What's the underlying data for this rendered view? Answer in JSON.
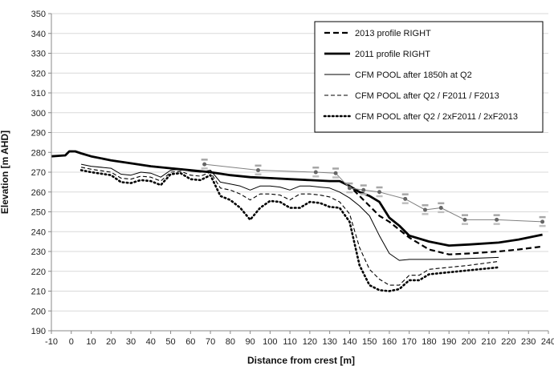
{
  "chart_data": {
    "type": "line",
    "xlabel": "Distance from crest [m]",
    "ylabel": "Elevation [m AHD]",
    "xlim": [
      -10,
      240
    ],
    "ylim": [
      190,
      350
    ],
    "x_ticks": [
      -10,
      0,
      10,
      20,
      30,
      40,
      50,
      60,
      70,
      80,
      90,
      100,
      110,
      120,
      130,
      140,
      150,
      160,
      170,
      180,
      190,
      200,
      210,
      220,
      230,
      240
    ],
    "y_ticks": [
      190,
      200,
      210,
      220,
      230,
      240,
      250,
      260,
      270,
      280,
      290,
      300,
      310,
      320,
      330,
      340,
      350
    ],
    "grid": "horizontal",
    "legend_position": "top-right",
    "series": [
      {
        "name": "2013 profile RIGHT",
        "style": "dashed-thick",
        "color": "#000000",
        "points": [
          [
            -10,
            278
          ],
          [
            -3,
            278.5
          ],
          [
            -1,
            280.5
          ],
          [
            2,
            280.5
          ],
          [
            5,
            279.5
          ],
          [
            10,
            278
          ],
          [
            20,
            276
          ],
          [
            30,
            274.5
          ],
          [
            40,
            273
          ],
          [
            50,
            272
          ],
          [
            60,
            271
          ],
          [
            70,
            270
          ],
          [
            80,
            268.5
          ],
          [
            90,
            267.5
          ],
          [
            100,
            267
          ],
          [
            110,
            266.5
          ],
          [
            120,
            266
          ],
          [
            130,
            265.5
          ],
          [
            135,
            265.5
          ],
          [
            140,
            263
          ],
          [
            145,
            258
          ],
          [
            150,
            253
          ],
          [
            155,
            248
          ],
          [
            160,
            245
          ],
          [
            165,
            241
          ],
          [
            170,
            237
          ],
          [
            180,
            231
          ],
          [
            190,
            228.5
          ],
          [
            200,
            229
          ],
          [
            215,
            230
          ],
          [
            225,
            231
          ],
          [
            237,
            232.5
          ]
        ]
      },
      {
        "name": "2011 profile RIGHT",
        "style": "solid-thick",
        "color": "#000000",
        "points": [
          [
            -10,
            278
          ],
          [
            -3,
            278.5
          ],
          [
            -1,
            280.5
          ],
          [
            2,
            280.5
          ],
          [
            5,
            279.5
          ],
          [
            10,
            278
          ],
          [
            20,
            276
          ],
          [
            30,
            274.5
          ],
          [
            40,
            273
          ],
          [
            50,
            272
          ],
          [
            60,
            271
          ],
          [
            70,
            270
          ],
          [
            80,
            268.5
          ],
          [
            90,
            267.5
          ],
          [
            100,
            267
          ],
          [
            110,
            266.5
          ],
          [
            120,
            266
          ],
          [
            130,
            265.5
          ],
          [
            135,
            265.5
          ],
          [
            140,
            263
          ],
          [
            145,
            260
          ],
          [
            150,
            258
          ],
          [
            155,
            255
          ],
          [
            160,
            247
          ],
          [
            165,
            243
          ],
          [
            170,
            238
          ],
          [
            180,
            235
          ],
          [
            190,
            233
          ],
          [
            200,
            233.5
          ],
          [
            215,
            234.5
          ],
          [
            225,
            236
          ],
          [
            237,
            238.5
          ]
        ]
      },
      {
        "name": "CFM POOL after 1850h at Q2",
        "style": "solid-thin",
        "color": "#000000",
        "points": [
          [
            5,
            274
          ],
          [
            10,
            273
          ],
          [
            20,
            272
          ],
          [
            25,
            269
          ],
          [
            30,
            268.5
          ],
          [
            35,
            270
          ],
          [
            40,
            269.5
          ],
          [
            45,
            267.5
          ],
          [
            50,
            271
          ],
          [
            55,
            271.5
          ],
          [
            60,
            270.5
          ],
          [
            65,
            270
          ],
          [
            70,
            271
          ],
          [
            75,
            265
          ],
          [
            80,
            264
          ],
          [
            85,
            263
          ],
          [
            90,
            261
          ],
          [
            95,
            263
          ],
          [
            100,
            263
          ],
          [
            105,
            262.5
          ],
          [
            110,
            261
          ],
          [
            115,
            263
          ],
          [
            120,
            263
          ],
          [
            125,
            262.5
          ],
          [
            130,
            262
          ],
          [
            135,
            260
          ],
          [
            140,
            257
          ],
          [
            145,
            253
          ],
          [
            150,
            248
          ],
          [
            155,
            238
          ],
          [
            160,
            229
          ],
          [
            165,
            225.5
          ],
          [
            170,
            226
          ],
          [
            180,
            226
          ],
          [
            190,
            226
          ],
          [
            200,
            226.5
          ],
          [
            215,
            227
          ]
        ]
      },
      {
        "name": "CFM POOL after Q2 / F2011 / F2013",
        "style": "dashed-thin",
        "color": "#000000",
        "points": [
          [
            5,
            272.5
          ],
          [
            10,
            271.5
          ],
          [
            20,
            270
          ],
          [
            25,
            267
          ],
          [
            30,
            266.5
          ],
          [
            35,
            268
          ],
          [
            40,
            267.5
          ],
          [
            45,
            265.5
          ],
          [
            50,
            270
          ],
          [
            55,
            270.5
          ],
          [
            60,
            268.5
          ],
          [
            65,
            268
          ],
          [
            70,
            270
          ],
          [
            75,
            262
          ],
          [
            80,
            261
          ],
          [
            85,
            259
          ],
          [
            90,
            256
          ],
          [
            95,
            259
          ],
          [
            100,
            259
          ],
          [
            105,
            258.5
          ],
          [
            110,
            256
          ],
          [
            115,
            259
          ],
          [
            120,
            259
          ],
          [
            125,
            258.5
          ],
          [
            130,
            257.5
          ],
          [
            135,
            255
          ],
          [
            140,
            249
          ],
          [
            145,
            232
          ],
          [
            150,
            221
          ],
          [
            155,
            216
          ],
          [
            160,
            213
          ],
          [
            165,
            213
          ],
          [
            170,
            218
          ],
          [
            175,
            218
          ],
          [
            180,
            221
          ],
          [
            190,
            222
          ],
          [
            200,
            223
          ],
          [
            215,
            225
          ]
        ]
      },
      {
        "name": "CFM POOL after Q2 / 2xF2011 / 2xF2013",
        "style": "dotted-thick",
        "color": "#000000",
        "points": [
          [
            5,
            271
          ],
          [
            10,
            270
          ],
          [
            20,
            268.5
          ],
          [
            25,
            265
          ],
          [
            30,
            264.5
          ],
          [
            35,
            266
          ],
          [
            40,
            265.5
          ],
          [
            45,
            263.5
          ],
          [
            50,
            269
          ],
          [
            55,
            269.5
          ],
          [
            60,
            266.5
          ],
          [
            65,
            266
          ],
          [
            70,
            268.5
          ],
          [
            75,
            258
          ],
          [
            80,
            256
          ],
          [
            85,
            252
          ],
          [
            90,
            246
          ],
          [
            95,
            252
          ],
          [
            100,
            255.5
          ],
          [
            105,
            255
          ],
          [
            110,
            252
          ],
          [
            115,
            252
          ],
          [
            120,
            255
          ],
          [
            125,
            254.5
          ],
          [
            130,
            252.5
          ],
          [
            135,
            252
          ],
          [
            140,
            245
          ],
          [
            145,
            223
          ],
          [
            150,
            213
          ],
          [
            155,
            210.5
          ],
          [
            160,
            210
          ],
          [
            165,
            211
          ],
          [
            170,
            215.5
          ],
          [
            175,
            215.5
          ],
          [
            180,
            218.5
          ],
          [
            190,
            219.5
          ],
          [
            200,
            220.5
          ],
          [
            215,
            222
          ]
        ]
      },
      {
        "name": "",
        "style": "gray-markers",
        "color": "#808080",
        "points": [
          [
            67,
            274
          ],
          [
            94,
            271
          ],
          [
            123,
            270
          ],
          [
            133,
            269.5
          ],
          [
            140,
            262
          ],
          [
            147,
            261
          ],
          [
            155,
            260
          ],
          [
            168,
            256.5
          ],
          [
            178,
            251
          ],
          [
            186,
            252
          ],
          [
            198,
            246
          ],
          [
            214,
            246
          ],
          [
            237,
            245
          ]
        ]
      }
    ]
  }
}
